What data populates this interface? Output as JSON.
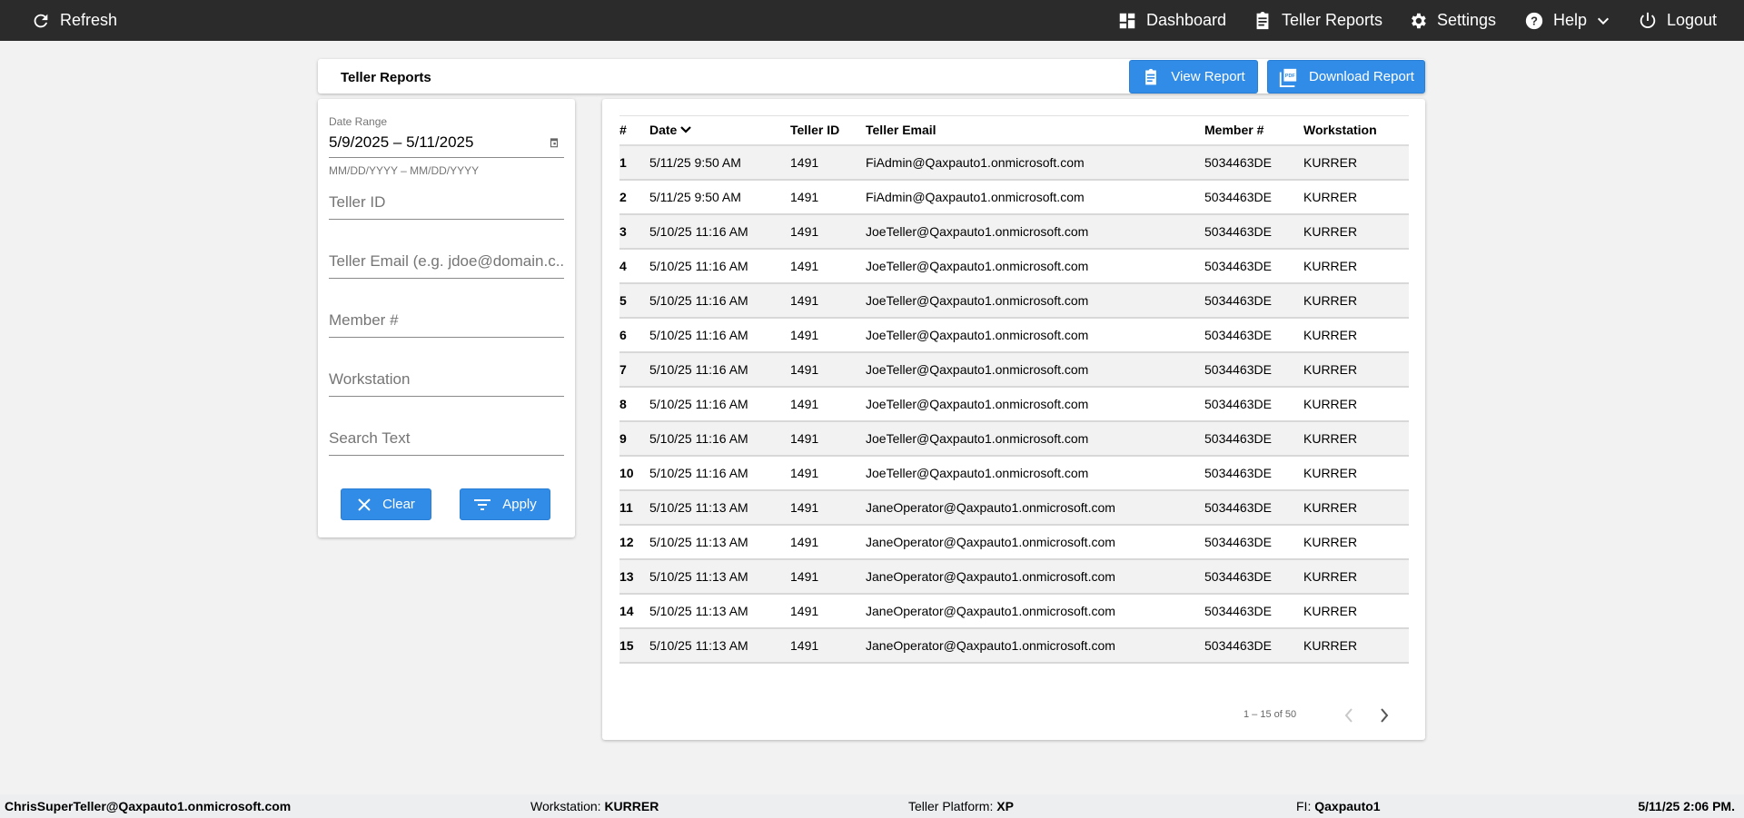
{
  "topbar": {
    "refresh": "Refresh",
    "dashboard": "Dashboard",
    "teller_reports": "Teller Reports",
    "settings": "Settings",
    "help": "Help",
    "logout": "Logout"
  },
  "title_card": {
    "title": "Teller Reports",
    "view_report": "View Report",
    "download_report": "Download Report"
  },
  "filters": {
    "date_range_label": "Date Range",
    "date_range_value": "5/9/2025 – 5/11/2025",
    "date_range_hint": "MM/DD/YYYY – MM/DD/YYYY",
    "teller_id_placeholder": "Teller ID",
    "teller_email_placeholder": "Teller Email (e.g. jdoe@domain.c...",
    "member_placeholder": "Member #",
    "workstation_placeholder": "Workstation",
    "search_placeholder": "Search Text",
    "clear": "Clear",
    "apply": "Apply"
  },
  "table": {
    "columns": [
      "#",
      "Date",
      "Teller ID",
      "Teller Email",
      "Member #",
      "Workstation"
    ],
    "sort_column": "Date",
    "sort_direction": "descending",
    "rows": [
      [
        "1",
        "5/11/25 9:50 AM",
        "1491",
        "FiAdmin@Qaxpauto1.onmicrosoft.com",
        "5034463DE",
        "KURRER"
      ],
      [
        "2",
        "5/11/25 9:50 AM",
        "1491",
        "FiAdmin@Qaxpauto1.onmicrosoft.com",
        "5034463DE",
        "KURRER"
      ],
      [
        "3",
        "5/10/25 11:16 AM",
        "1491",
        "JoeTeller@Qaxpauto1.onmicrosoft.com",
        "5034463DE",
        "KURRER"
      ],
      [
        "4",
        "5/10/25 11:16 AM",
        "1491",
        "JoeTeller@Qaxpauto1.onmicrosoft.com",
        "5034463DE",
        "KURRER"
      ],
      [
        "5",
        "5/10/25 11:16 AM",
        "1491",
        "JoeTeller@Qaxpauto1.onmicrosoft.com",
        "5034463DE",
        "KURRER"
      ],
      [
        "6",
        "5/10/25 11:16 AM",
        "1491",
        "JoeTeller@Qaxpauto1.onmicrosoft.com",
        "5034463DE",
        "KURRER"
      ],
      [
        "7",
        "5/10/25 11:16 AM",
        "1491",
        "JoeTeller@Qaxpauto1.onmicrosoft.com",
        "5034463DE",
        "KURRER"
      ],
      [
        "8",
        "5/10/25 11:16 AM",
        "1491",
        "JoeTeller@Qaxpauto1.onmicrosoft.com",
        "5034463DE",
        "KURRER"
      ],
      [
        "9",
        "5/10/25 11:16 AM",
        "1491",
        "JoeTeller@Qaxpauto1.onmicrosoft.com",
        "5034463DE",
        "KURRER"
      ],
      [
        "10",
        "5/10/25 11:16 AM",
        "1491",
        "JoeTeller@Qaxpauto1.onmicrosoft.com",
        "5034463DE",
        "KURRER"
      ],
      [
        "11",
        "5/10/25 11:13 AM",
        "1491",
        "JaneOperator@Qaxpauto1.onmicrosoft.com",
        "5034463DE",
        "KURRER"
      ],
      [
        "12",
        "5/10/25 11:13 AM",
        "1491",
        "JaneOperator@Qaxpauto1.onmicrosoft.com",
        "5034463DE",
        "KURRER"
      ],
      [
        "13",
        "5/10/25 11:13 AM",
        "1491",
        "JaneOperator@Qaxpauto1.onmicrosoft.com",
        "5034463DE",
        "KURRER"
      ],
      [
        "14",
        "5/10/25 11:13 AM",
        "1491",
        "JaneOperator@Qaxpauto1.onmicrosoft.com",
        "5034463DE",
        "KURRER"
      ],
      [
        "15",
        "5/10/25 11:13 AM",
        "1491",
        "JaneOperator@Qaxpauto1.onmicrosoft.com",
        "5034463DE",
        "KURRER"
      ]
    ],
    "pagination": "1 – 15 of 50"
  },
  "footer": {
    "user": "ChrisSuperTeller@Qaxpauto1.onmicrosoft.com",
    "workstation_label": "Workstation:",
    "workstation": "KURRER",
    "platform_label": "Teller Platform:",
    "platform": "XP",
    "fi_label": "FI:",
    "fi": "Qaxpauto1",
    "datetime": "5/11/25 2:06 PM."
  },
  "colors": {
    "topbar": "#2b2b2b",
    "accent": "#318ce7",
    "background": "#f2f2f2"
  }
}
